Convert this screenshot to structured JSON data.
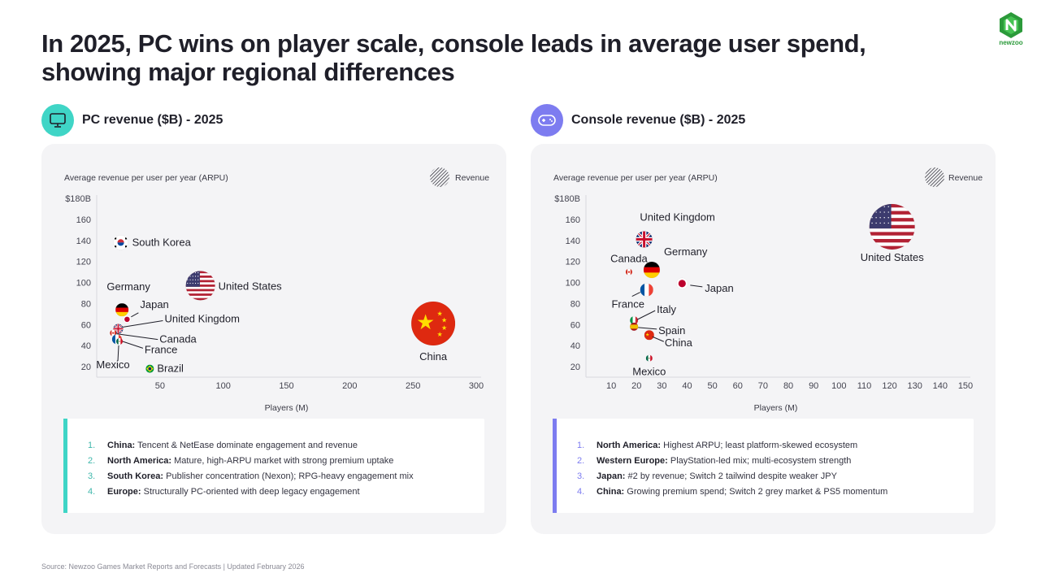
{
  "title": "In 2025, PC wins on player scale, console leads in average user spend, showing major regional differences",
  "logo": "newzoo",
  "source": "Source: Newzoo Games Market Reports and Forecasts | Updated February 2026",
  "colors": {
    "pc_accent": "#3fd5c6",
    "console_accent": "#7d7cf0",
    "panel_bg": "#f4f4f6"
  },
  "pc": {
    "heading": "PC revenue ($B) - 2025",
    "icon": "monitor-icon",
    "legend": "Revenue",
    "notes": [
      {
        "num": "1.",
        "bold": "China:",
        "text": " Tencent & NetEase dominate engagement and revenue"
      },
      {
        "num": "2.",
        "bold": "North America:",
        "text": " Mature, high-ARPU market with strong premium uptake"
      },
      {
        "num": "3.",
        "bold": "South Korea:",
        "text": " Publisher concentration (Nexon); RPG-heavy engagement mix"
      },
      {
        "num": "4.",
        "bold": "Europe:",
        "text": " Structurally PC-oriented with deep legacy engagement"
      }
    ]
  },
  "console": {
    "heading": "Console revenue ($B) - 2025",
    "icon": "gamepad-icon",
    "legend": "Revenue",
    "notes": [
      {
        "num": "1.",
        "bold": "North America:",
        "text": " Highest ARPU; least platform-skewed ecosystem"
      },
      {
        "num": "2.",
        "bold": "Western Europe:",
        "text": " PlayStation-led mix; multi-ecosystem strength"
      },
      {
        "num": "3.",
        "bold": "Japan:",
        "text": " #2 by revenue; Switch 2 tailwind despite weaker JPY"
      },
      {
        "num": "4.",
        "bold": "China:",
        "text": " Growing premium spend; Switch 2 grey market & PS5 momentum"
      }
    ]
  },
  "chart_data": [
    {
      "type": "scatter",
      "title": "PC revenue ($B) - 2025",
      "xlabel": "Players (M)",
      "ylabel": "Average revenue per user per year (ARPU)",
      "legend": "Revenue",
      "xlim": [
        0,
        300
      ],
      "ylim": [
        10,
        180
      ],
      "x_ticks": [
        50,
        100,
        150,
        200,
        250,
        300
      ],
      "x_tick_labels": [
        "50",
        "100",
        "150",
        "200",
        "250",
        "300"
      ],
      "y_ticks": [
        20,
        40,
        60,
        80,
        100,
        120,
        140,
        160,
        180
      ],
      "y_tick_labels": [
        "20",
        "40",
        "60",
        "80",
        "100",
        "120",
        "140",
        "160",
        "$180B"
      ],
      "points": [
        {
          "name": "South Korea",
          "flag": "kr",
          "x": 19,
          "y": 138,
          "size": 9
        },
        {
          "name": "United States",
          "flag": "us",
          "x": 82,
          "y": 97,
          "size": 18
        },
        {
          "name": "Germany",
          "flag": "de",
          "x": 20,
          "y": 74,
          "size": 8
        },
        {
          "name": "Japan",
          "flag": "jp",
          "x": 24,
          "y": 65,
          "size": 5
        },
        {
          "name": "United Kingdom",
          "flag": "gb",
          "x": 17,
          "y": 56,
          "size": 6
        },
        {
          "name": "Canada",
          "flag": "ca",
          "x": 13,
          "y": 52,
          "size": 4
        },
        {
          "name": "France",
          "flag": "fr",
          "x": 16,
          "y": 46,
          "size": 6
        },
        {
          "name": "Mexico",
          "flag": "mx",
          "x": 18,
          "y": 44,
          "size": 4
        },
        {
          "name": "Brazil",
          "flag": "br",
          "x": 42,
          "y": 18,
          "size": 5
        },
        {
          "name": "China",
          "flag": "cn",
          "x": 266,
          "y": 61,
          "size": 27
        }
      ]
    },
    {
      "type": "scatter",
      "title": "Console revenue ($B) - 2025",
      "xlabel": "Players (M)",
      "ylabel": "Average revenue per user per year (ARPU)",
      "legend": "Revenue",
      "xlim": [
        0,
        150
      ],
      "ylim": [
        10,
        180
      ],
      "x_ticks": [
        10,
        20,
        30,
        40,
        50,
        60,
        70,
        80,
        90,
        100,
        110,
        120,
        130,
        140,
        150
      ],
      "x_tick_labels": [
        "10",
        "20",
        "30",
        "40",
        "50",
        "60",
        "70",
        "80",
        "90",
        "100",
        "110",
        "120",
        "130",
        "140",
        "150"
      ],
      "y_ticks": [
        20,
        40,
        60,
        80,
        100,
        120,
        140,
        160,
        180
      ],
      "y_tick_labels": [
        "20",
        "40",
        "60",
        "80",
        "100",
        "120",
        "140",
        "160",
        "$180B"
      ],
      "points": [
        {
          "name": "United Kingdom",
          "flag": "gb",
          "x": 23,
          "y": 141,
          "size": 10
        },
        {
          "name": "Germany",
          "flag": "de",
          "x": 26,
          "y": 112,
          "size": 10
        },
        {
          "name": "Canada",
          "flag": "ca",
          "x": 17,
          "y": 110,
          "size": 4
        },
        {
          "name": "Japan",
          "flag": "jp",
          "x": 38,
          "y": 99,
          "size": 7
        },
        {
          "name": "France",
          "flag": "fr",
          "x": 24,
          "y": 93,
          "size": 8
        },
        {
          "name": "Italy",
          "flag": "it",
          "x": 19,
          "y": 64,
          "size": 5
        },
        {
          "name": "Spain",
          "flag": "es",
          "x": 19,
          "y": 58,
          "size": 5
        },
        {
          "name": "China",
          "flag": "cn",
          "x": 25,
          "y": 50,
          "size": 6
        },
        {
          "name": "Mexico",
          "flag": "mx",
          "x": 25,
          "y": 28,
          "size": 4
        },
        {
          "name": "United States",
          "flag": "us",
          "x": 121,
          "y": 153,
          "size": 28
        }
      ]
    }
  ]
}
